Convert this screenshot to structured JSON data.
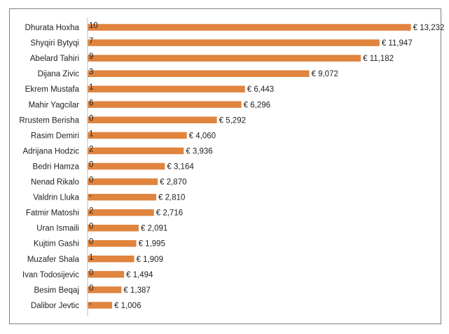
{
  "colors": {
    "bar": "#E0843E",
    "axis": "#bfbfbf",
    "frame": "#7f7f7f",
    "text": "#222222"
  },
  "chart_data": {
    "type": "bar",
    "orientation": "horizontal",
    "title": "",
    "xlabel": "",
    "ylabel": "",
    "grid": false,
    "legend": "none",
    "xlim": [
      0,
      13500
    ],
    "categories": [
      "Dhurata Hoxha",
      "Shyqiri Bytyqi",
      "Abelard Tahiri",
      "Dijana Zivic",
      "Ekrem Mustafa",
      "Mahir Yagcilar",
      "Rrustem Berisha",
      "Rasim Demiri",
      "Adrijana Hodzic",
      "Bedri Hamza",
      "Nenad Rikalo",
      "Valdrin Lluka",
      "Fatmir Matoshi",
      "Uran Ismaili",
      "Kujtim Gashi",
      "Muzafer Shala",
      "Ivan Todosijevic",
      "Besim Beqaj",
      "Dalibor Jevtic"
    ],
    "values": [
      13232,
      11947,
      11182,
      9072,
      6443,
      6296,
      5292,
      4060,
      3936,
      3164,
      2870,
      2810,
      2716,
      2091,
      1995,
      1909,
      1494,
      1387,
      1006
    ],
    "value_labels": [
      "€ 13,232",
      "€ 11,947",
      "€ 11,182",
      "€ 9,072",
      "€ 6,443",
      "€ 6,296",
      "€ 5,292",
      "€ 4,060",
      "€ 3,936",
      "€ 3,164",
      "€ 2,870",
      "€ 2,810",
      "€ 2,716",
      "€ 2,091",
      "€ 1,995",
      "€ 1,909",
      "€ 1,494",
      "€ 1,387",
      "€ 1,006"
    ],
    "inner_labels": [
      "10",
      "7",
      "9",
      "3",
      "1",
      "6",
      "0",
      "1",
      "2",
      "0",
      "0",
      "-",
      "2",
      "0",
      "0",
      "1",
      "0",
      "0",
      "-"
    ]
  }
}
